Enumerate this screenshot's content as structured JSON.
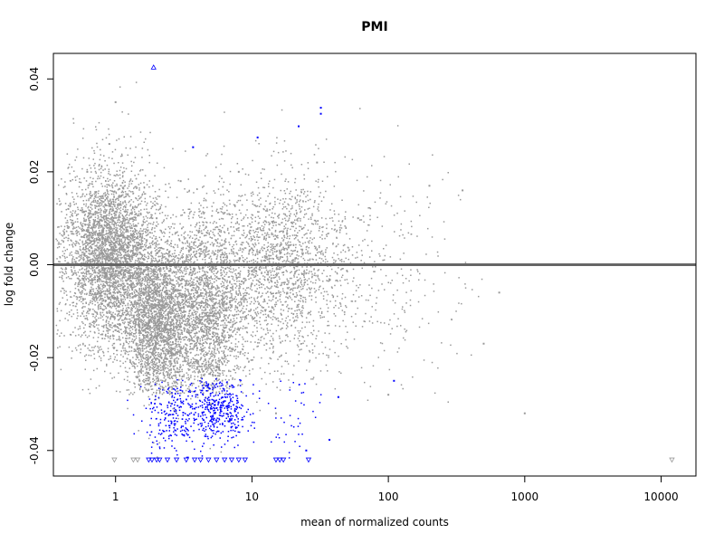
{
  "chart_data": {
    "type": "scatter",
    "title": "PMI",
    "xlabel": "mean of normalized counts",
    "ylabel": "log fold change",
    "x_scale": "log10",
    "xlim": [
      0.35,
      18000
    ],
    "ylim": [
      -0.0455,
      0.0455
    ],
    "x_ticks": [
      1,
      10,
      100,
      1000,
      10000
    ],
    "x_tick_labels": [
      "1",
      "10",
      "100",
      "1000",
      "10000"
    ],
    "y_ticks": [
      -0.04,
      -0.02,
      0.0,
      0.02,
      0.04
    ],
    "y_tick_labels": [
      "-0.04",
      "-0.02",
      "0.00",
      "0.02",
      "0.04"
    ],
    "reference_line": {
      "y": 0,
      "color": "#666666"
    },
    "grid": false,
    "legend": "none",
    "series": [
      {
        "color": "#999999",
        "marker": "dot",
        "points": [
          [
            0.45,
            0.012
          ],
          [
            0.55,
            -0.006
          ],
          [
            0.62,
            0.02
          ],
          [
            0.7,
            0.005
          ],
          [
            0.8,
            -0.015
          ],
          [
            0.9,
            0.026
          ],
          [
            1.0,
            0.035
          ],
          [
            1.2,
            -0.01
          ],
          [
            1.5,
            -0.025
          ],
          [
            2.0,
            0.01
          ],
          [
            3.0,
            0.018
          ],
          [
            5.0,
            -0.03
          ],
          [
            8.0,
            0.02
          ],
          [
            15.0,
            -0.032
          ],
          [
            30.0,
            0.022
          ],
          [
            60.0,
            0.01
          ],
          [
            100.0,
            -0.028
          ],
          [
            200.0,
            0.017
          ],
          [
            350.0,
            0.016
          ],
          [
            500.0,
            -0.017
          ],
          [
            650.0,
            -0.006
          ],
          [
            1000.0,
            -0.032
          ]
        ]
      },
      {
        "color": "#0000ff",
        "marker": "dot",
        "points": [
          [
            3.7,
            0.0253
          ],
          [
            11.0,
            0.0274
          ],
          [
            22.0,
            0.0298
          ],
          [
            32.0,
            0.0338
          ],
          [
            32.0,
            0.0325
          ],
          [
            37.0,
            -0.0377
          ],
          [
            43.0,
            -0.0285
          ],
          [
            110.0,
            -0.025
          ],
          [
            25.0,
            -0.04
          ]
        ]
      },
      {
        "color": "#0000ff",
        "marker": "triangle-up",
        "points": [
          [
            1.9,
            0.0425
          ]
        ]
      },
      {
        "color": "#0000ff",
        "marker": "triangle-down",
        "points": [
          [
            1.75,
            -0.042
          ],
          [
            1.85,
            -0.042
          ],
          [
            2.0,
            -0.042
          ],
          [
            2.1,
            -0.042
          ],
          [
            2.4,
            -0.042
          ],
          [
            2.8,
            -0.042
          ],
          [
            3.3,
            -0.042
          ],
          [
            3.8,
            -0.042
          ],
          [
            4.2,
            -0.042
          ],
          [
            4.8,
            -0.042
          ],
          [
            5.5,
            -0.042
          ],
          [
            6.3,
            -0.042
          ],
          [
            7.1,
            -0.042
          ],
          [
            8.0,
            -0.042
          ],
          [
            8.9,
            -0.042
          ],
          [
            15.0,
            -0.042
          ],
          [
            16.0,
            -0.042
          ],
          [
            17.0,
            -0.042
          ],
          [
            26.0,
            -0.042
          ]
        ]
      },
      {
        "color": "#999999",
        "marker": "triangle-down",
        "points": [
          [
            0.98,
            -0.042
          ],
          [
            1.35,
            -0.042
          ],
          [
            1.45,
            -0.042
          ],
          [
            12000.0,
            -0.042
          ]
        ]
      }
    ],
    "clusters": [
      {
        "color": "#999999",
        "n": 3600,
        "x_log_mean": -0.05,
        "x_log_sd": 0.17,
        "y_mean": 0.002,
        "y_sd": 0.0095
      },
      {
        "color": "#999999",
        "n": 2600,
        "x_log_mean": 0.3,
        "x_log_sd": 0.12,
        "y_mean": -0.012,
        "y_sd": 0.009
      },
      {
        "color": "#999999",
        "n": 2200,
        "x_log_mean": 0.65,
        "x_log_sd": 0.14,
        "y_mean": -0.011,
        "y_sd": 0.011
      },
      {
        "color": "#999999",
        "n": 2000,
        "x_log_mean": 1.15,
        "x_log_sd": 0.28,
        "y_mean": -0.001,
        "y_sd": 0.01
      },
      {
        "color": "#999999",
        "n": 260,
        "x_log_mean": 1.9,
        "x_log_sd": 0.3,
        "y_mean": -0.003,
        "y_sd": 0.012
      },
      {
        "color": "#0000ff",
        "n": 380,
        "x_log_mean": 0.75,
        "x_log_sd": 0.12,
        "y_mean": -0.031,
        "y_sd": 0.0035
      },
      {
        "color": "#0000ff",
        "n": 220,
        "x_log_mean": 0.42,
        "x_log_sd": 0.12,
        "y_mean": -0.033,
        "y_sd": 0.004
      },
      {
        "color": "#0000ff",
        "n": 40,
        "x_log_mean": 1.25,
        "x_log_sd": 0.12,
        "y_mean": -0.032,
        "y_sd": 0.005
      }
    ]
  }
}
